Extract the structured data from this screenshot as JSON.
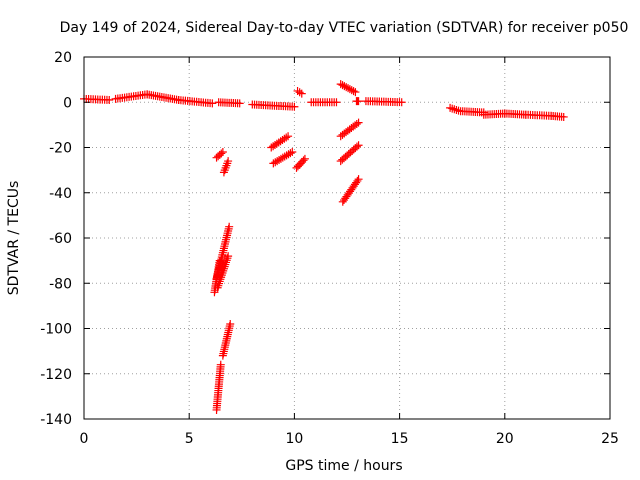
{
  "chart_data": {
    "type": "scatter",
    "title": "Day 149 of 2024, Sidereal Day-to-day VTEC variation (SDTVAR) for receiver p050",
    "xlabel": "GPS time / hours",
    "ylabel": "SDTVAR / TECUs",
    "xlim": [
      0,
      25
    ],
    "ylim": [
      -140,
      20
    ],
    "xticks": [
      0,
      5,
      10,
      15,
      20,
      25
    ],
    "yticks": [
      20,
      0,
      -20,
      -40,
      -60,
      -80,
      -100,
      -120,
      -140
    ],
    "grid": true,
    "marker": "+",
    "color": "#ff0000",
    "segments": [
      {
        "x": [
          0.0,
          1.2
        ],
        "y": [
          1.5,
          1.0
        ]
      },
      {
        "x": [
          1.5,
          3.0
        ],
        "y": [
          1.5,
          3.5
        ]
      },
      {
        "x": [
          3.0,
          4.5
        ],
        "y": [
          3.5,
          1.0
        ]
      },
      {
        "x": [
          4.5,
          6.1
        ],
        "y": [
          1.0,
          -0.5
        ]
      },
      {
        "x": [
          6.4,
          7.4
        ],
        "y": [
          0.0,
          -0.5
        ]
      },
      {
        "x": [
          8.0,
          10.0
        ],
        "y": [
          -1.0,
          -2.0
        ]
      },
      {
        "x": [
          10.15,
          10.35
        ],
        "y": [
          5.0,
          3.8
        ]
      },
      {
        "x": [
          10.8,
          12.0
        ],
        "y": [
          0.0,
          0.0
        ]
      },
      {
        "x": [
          12.2,
          12.9
        ],
        "y": [
          8.0,
          4.5
        ]
      },
      {
        "x": [
          12.95,
          13.05
        ],
        "y": [
          0.5,
          0.5
        ]
      },
      {
        "x": [
          13.4,
          15.1
        ],
        "y": [
          0.5,
          0.0
        ]
      },
      {
        "x": [
          17.4,
          17.9
        ],
        "y": [
          -2.5,
          -4.0
        ]
      },
      {
        "x": [
          18.0,
          19.0
        ],
        "y": [
          -4.0,
          -4.5
        ]
      },
      {
        "x": [
          19.0,
          20.0
        ],
        "y": [
          -5.5,
          -5.0
        ]
      },
      {
        "x": [
          20.0,
          21.0
        ],
        "y": [
          -5.0,
          -5.5
        ]
      },
      {
        "x": [
          21.0,
          22.2
        ],
        "y": [
          -5.5,
          -6.0
        ]
      },
      {
        "x": [
          22.2,
          22.8
        ],
        "y": [
          -6.0,
          -6.5
        ]
      },
      {
        "x": [
          6.3,
          6.6
        ],
        "y": [
          -24.5,
          -22.0
        ]
      },
      {
        "x": [
          6.65,
          6.85
        ],
        "y": [
          -31.0,
          -26.0
        ]
      },
      {
        "x": [
          6.2,
          6.45
        ],
        "y": [
          -84.0,
          -70.0
        ]
      },
      {
        "x": [
          6.3,
          6.9
        ],
        "y": [
          -78.0,
          -55.0
        ]
      },
      {
        "x": [
          6.35,
          6.85
        ],
        "y": [
          -82.0,
          -68.0
        ]
      },
      {
        "x": [
          6.3,
          6.5
        ],
        "y": [
          -136.0,
          -116.0
        ]
      },
      {
        "x": [
          6.6,
          6.95
        ],
        "y": [
          -112.0,
          -98.0
        ]
      },
      {
        "x": [
          8.9,
          9.7
        ],
        "y": [
          -20.0,
          -15.0
        ]
      },
      {
        "x": [
          9.0,
          9.9
        ],
        "y": [
          -27.0,
          -22.0
        ]
      },
      {
        "x": [
          10.1,
          10.5
        ],
        "y": [
          -29.0,
          -25.0
        ]
      },
      {
        "x": [
          12.2,
          13.05
        ],
        "y": [
          -15.0,
          -9.0
        ]
      },
      {
        "x": [
          12.2,
          13.05
        ],
        "y": [
          -26.0,
          -19.0
        ]
      },
      {
        "x": [
          12.3,
          13.05
        ],
        "y": [
          -44.0,
          -34.0
        ]
      }
    ]
  }
}
